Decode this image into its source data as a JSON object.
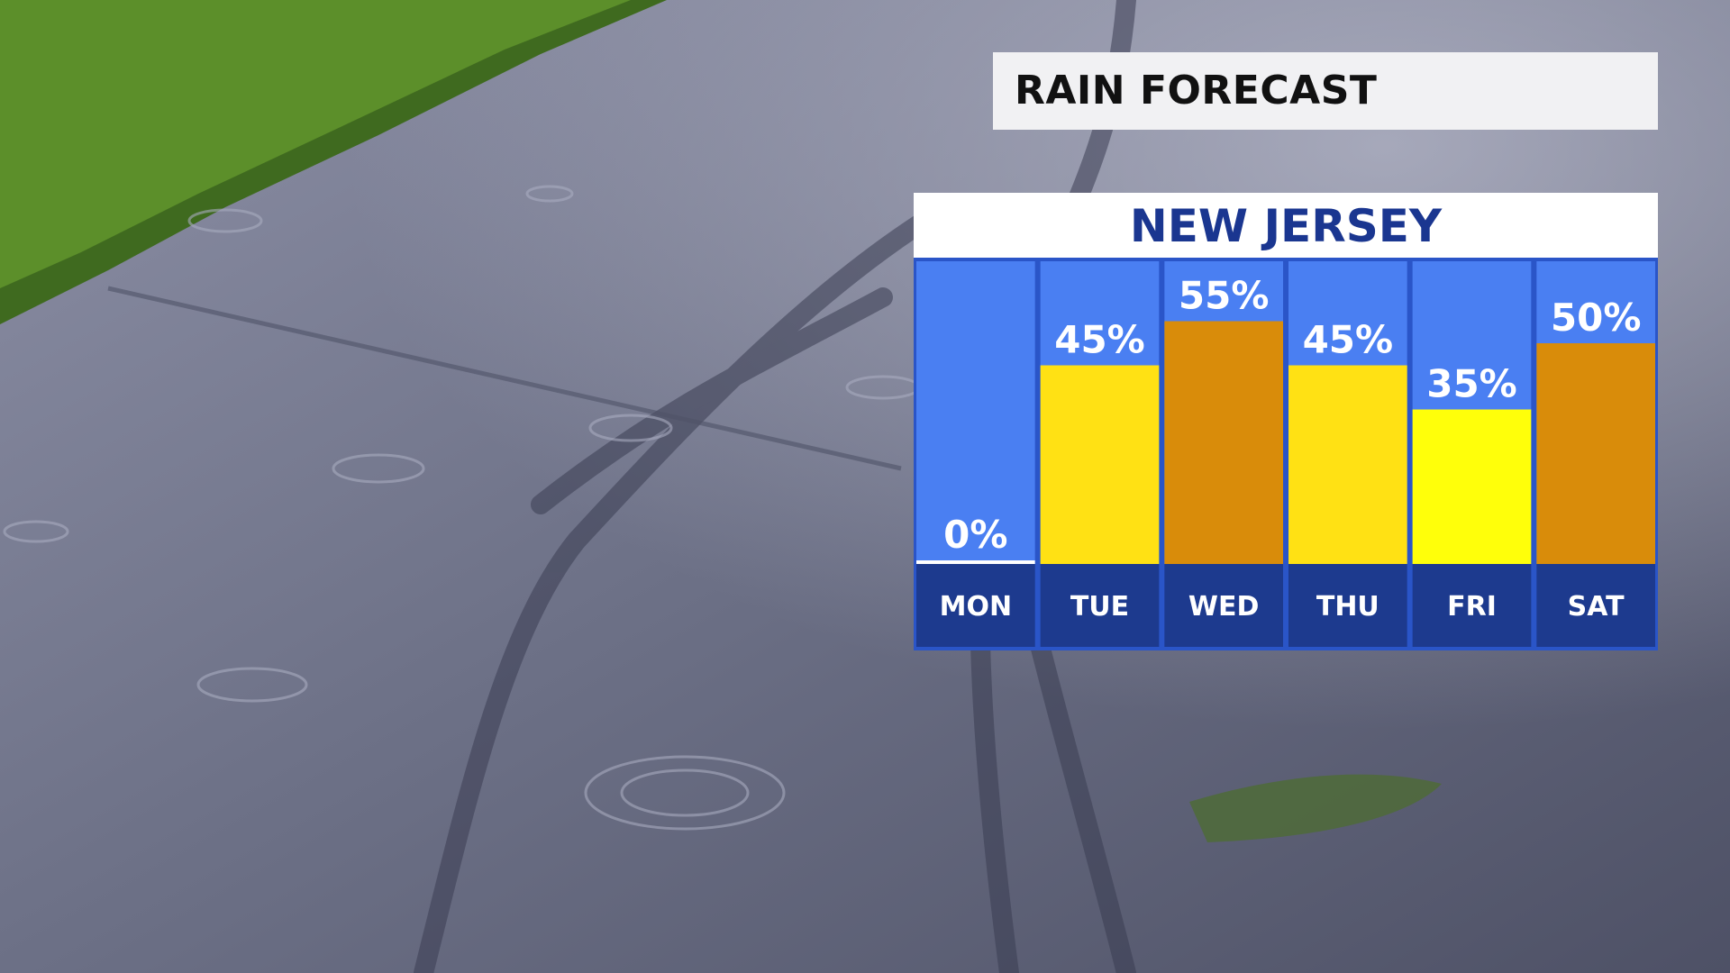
{
  "title": "RAIN FORECAST",
  "region": "NEW JERSEY",
  "colors": {
    "column_bg": "#4a7ff2",
    "day_band": "#1d3a8e",
    "frame": "#2a55c8",
    "bar_low": "#ffffff",
    "bar_mid": "#ffe114",
    "bar_high": "#d98c0a",
    "bar_bright": "#ffff0a"
  },
  "chart_data": {
    "type": "bar",
    "categories": [
      "MON",
      "TUE",
      "WED",
      "THU",
      "FRI",
      "SAT"
    ],
    "values": [
      0,
      45,
      55,
      45,
      35,
      50
    ],
    "labels": [
      "0%",
      "45%",
      "55%",
      "45%",
      "35%",
      "50%"
    ],
    "bar_colors": [
      "#ffffff",
      "#ffe114",
      "#d98c0a",
      "#ffe114",
      "#ffff0a",
      "#d98c0a"
    ],
    "title": "RAIN FORECAST",
    "subtitle": "NEW JERSEY",
    "xlabel": "",
    "ylabel": "",
    "ylim": [
      0,
      100
    ],
    "grid": false,
    "legend": "none"
  }
}
